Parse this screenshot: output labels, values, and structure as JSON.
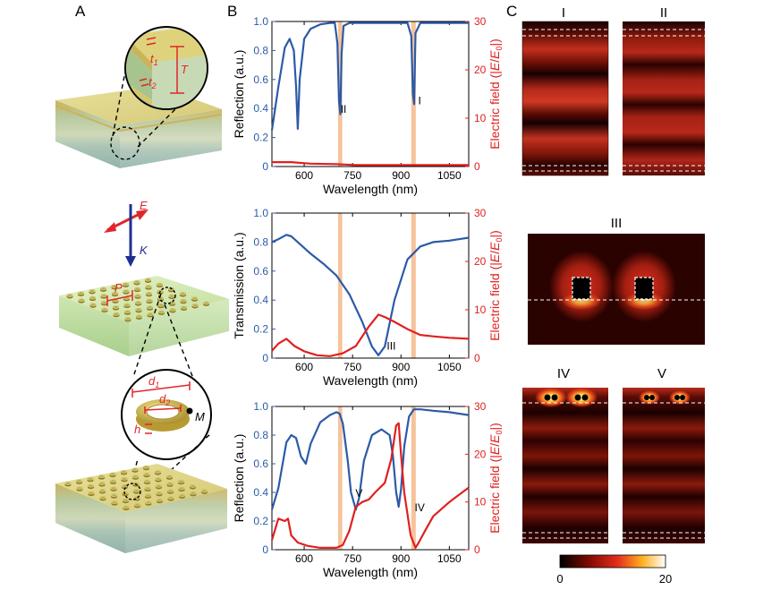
{
  "panel_labels": {
    "a": "A",
    "b": "B",
    "c": "C"
  },
  "schematic": {
    "zoom1": {
      "t1": "t",
      "t1_sub": "1",
      "t2": "t",
      "t2_sub": "2",
      "T": "T"
    },
    "field": {
      "E": "E",
      "K": "K"
    },
    "array": {
      "P": "P"
    },
    "zoom2": {
      "d1": "d",
      "d1_sub": "1",
      "d2": "d",
      "d2_sub": "2",
      "h": "h",
      "M": "M"
    }
  },
  "colors": {
    "blue": "#2c5aa8",
    "red": "#e02020",
    "band": "#f5b88a",
    "schematic_red": "#e0262b",
    "gold": "#c8b04a",
    "green": "#cfe6b2"
  },
  "chart_data": [
    {
      "type": "line",
      "panel": "B-top",
      "xlabel": "Wavelength (nm)",
      "ylabel_left": "Reflection (a.u.)",
      "ylabel_right": "Electric field (|E/E0|)",
      "ylabel_right_parts": [
        "Electric field (|",
        "E",
        "/",
        "E",
        "0",
        "|)"
      ],
      "xlim": [
        500,
        1110
      ],
      "ylim_left": [
        0,
        1.0
      ],
      "ylim_right": [
        0,
        30
      ],
      "x_ticks": [
        600,
        750,
        900,
        1050
      ],
      "x_tick_labels": [
        "600",
        "750",
        "900",
        "1050"
      ],
      "y_ticks_left": [
        0,
        0.2,
        0.4,
        0.6,
        0.8,
        1.0
      ],
      "y_tick_labels_left": [
        "0",
        "0.2",
        "0.4",
        "0.6",
        "0.8",
        "1.0"
      ],
      "y_ticks_right": [
        0,
        10,
        20,
        30
      ],
      "y_tick_labels_right": [
        "0",
        "10",
        "20",
        "30"
      ],
      "bands": [
        [
          705,
          718
        ],
        [
          932,
          946
        ]
      ],
      "annotations": [
        {
          "text": "II",
          "x": 722,
          "y": 0.37
        },
        {
          "text": "I",
          "x": 958,
          "y": 0.43
        }
      ],
      "series": [
        {
          "axis": "left",
          "color": "#2c5aa8",
          "x": [
            500,
            520,
            540,
            555,
            568,
            575,
            580,
            586,
            600,
            620,
            650,
            680,
            695,
            703,
            708,
            712,
            716,
            722,
            740,
            780,
            850,
            920,
            932,
            937,
            941,
            945,
            960,
            1000,
            1050,
            1110
          ],
          "y": [
            0.25,
            0.55,
            0.82,
            0.88,
            0.8,
            0.55,
            0.26,
            0.6,
            0.88,
            0.95,
            0.98,
            0.99,
            0.99,
            0.85,
            0.45,
            0.36,
            0.78,
            0.97,
            0.99,
            0.99,
            0.99,
            0.99,
            0.9,
            0.5,
            0.43,
            0.92,
            0.99,
            0.99,
            0.99,
            0.99
          ]
        },
        {
          "axis": "right",
          "color": "#e02020",
          "x": [
            500,
            560,
            620,
            700,
            760,
            840,
            920,
            1000,
            1110
          ],
          "y": [
            0.9,
            0.9,
            0.6,
            0.5,
            0.3,
            0.3,
            0.3,
            0.3,
            0.3
          ]
        }
      ]
    },
    {
      "type": "line",
      "panel": "B-middle",
      "xlabel": "Wavelength (nm)",
      "ylabel_left": "Transmission (a.u.)",
      "ylabel_right": "Electric field (|E/E0|)",
      "ylabel_right_parts": [
        "Electric field (|",
        "E",
        "/",
        "E",
        "0",
        "|)"
      ],
      "xlim": [
        500,
        1110
      ],
      "ylim_left": [
        0,
        1.0
      ],
      "ylim_right": [
        0,
        30
      ],
      "x_ticks": [
        600,
        750,
        900,
        1050
      ],
      "x_tick_labels": [
        "600",
        "750",
        "900",
        "1050"
      ],
      "y_ticks_left": [
        0,
        0.2,
        0.4,
        0.6,
        0.8,
        1.0
      ],
      "y_tick_labels_left": [
        "0",
        "0.2",
        "0.4",
        "0.6",
        "0.8",
        "1.0"
      ],
      "y_ticks_right": [
        0,
        10,
        20,
        30
      ],
      "y_tick_labels_right": [
        "0",
        "10",
        "20",
        "30"
      ],
      "bands": [
        [
          705,
          718
        ],
        [
          932,
          946
        ]
      ],
      "annotations": [
        {
          "text": "III",
          "x": 870,
          "y": 0.06
        }
      ],
      "series": [
        {
          "axis": "left",
          "color": "#2c5aa8",
          "x": [
            500,
            520,
            545,
            560,
            580,
            620,
            660,
            700,
            740,
            780,
            810,
            830,
            850,
            880,
            920,
            960,
            1000,
            1050,
            1110
          ],
          "y": [
            0.8,
            0.82,
            0.85,
            0.84,
            0.8,
            0.72,
            0.65,
            0.57,
            0.44,
            0.25,
            0.08,
            0.02,
            0.08,
            0.4,
            0.68,
            0.77,
            0.8,
            0.81,
            0.83
          ]
        },
        {
          "axis": "right",
          "color": "#e02020",
          "x": [
            500,
            520,
            545,
            570,
            600,
            640,
            680,
            720,
            760,
            800,
            830,
            850,
            880,
            920,
            960,
            1000,
            1050,
            1110
          ],
          "y": [
            1.5,
            3.0,
            4.0,
            2.5,
            1.4,
            0.6,
            0.4,
            1.0,
            2.5,
            6.5,
            9.0,
            8.5,
            7.5,
            6.0,
            4.8,
            4.5,
            4.2,
            4.0
          ]
        }
      ]
    },
    {
      "type": "line",
      "panel": "B-bottom",
      "xlabel": "Wavelength (nm)",
      "ylabel_left": "Reflection (a.u.)",
      "ylabel_right": "Electric field (|E/E0|)",
      "ylabel_right_parts": [
        "Electric field (|",
        "E",
        "/",
        "E",
        "0",
        "|)"
      ],
      "xlim": [
        500,
        1110
      ],
      "ylim_left": [
        0,
        1.0
      ],
      "ylim_right": [
        0,
        30
      ],
      "x_ticks": [
        600,
        750,
        900,
        1050
      ],
      "x_tick_labels": [
        "600",
        "750",
        "900",
        "1050"
      ],
      "y_ticks_left": [
        0,
        0.2,
        0.4,
        0.6,
        0.8,
        1.0
      ],
      "y_tick_labels_left": [
        "0",
        "0.2",
        "0.4",
        "0.6",
        "0.8",
        "1.0"
      ],
      "y_ticks_right": [
        0,
        10,
        20,
        30
      ],
      "y_tick_labels_right": [
        "0",
        "10",
        "20",
        "30"
      ],
      "bands": [
        [
          705,
          718
        ],
        [
          932,
          946
        ]
      ],
      "annotations": [
        {
          "text": "V",
          "x": 770,
          "y": 0.37
        },
        {
          "text": "IV",
          "x": 958,
          "y": 0.27
        }
      ],
      "series": [
        {
          "axis": "left",
          "color": "#2c5aa8",
          "x": [
            500,
            520,
            545,
            560,
            575,
            590,
            605,
            620,
            650,
            680,
            700,
            710,
            720,
            735,
            745,
            760,
            770,
            785,
            810,
            840,
            865,
            875,
            885,
            893,
            900,
            910,
            925,
            940,
            960,
            1000,
            1050,
            1110
          ],
          "y": [
            0.28,
            0.43,
            0.75,
            0.8,
            0.78,
            0.65,
            0.6,
            0.74,
            0.89,
            0.94,
            0.96,
            0.95,
            0.88,
            0.62,
            0.4,
            0.28,
            0.36,
            0.62,
            0.8,
            0.84,
            0.8,
            0.66,
            0.4,
            0.3,
            0.42,
            0.72,
            0.93,
            0.98,
            0.98,
            0.97,
            0.96,
            0.94
          ]
        },
        {
          "axis": "right",
          "color": "#e02020",
          "x": [
            500,
            520,
            540,
            550,
            560,
            580,
            610,
            650,
            700,
            720,
            740,
            760,
            780,
            800,
            820,
            850,
            870,
            885,
            893,
            900,
            910,
            930,
            945,
            955,
            975,
            1000,
            1050,
            1100,
            1110
          ],
          "y": [
            2.0,
            6.5,
            6.0,
            6.5,
            3.0,
            1.5,
            0.8,
            0.4,
            0.4,
            1.0,
            4.0,
            9.0,
            10.0,
            10.5,
            12.0,
            14.0,
            19.0,
            26.0,
            26.5,
            20.0,
            12.0,
            3.0,
            0.4,
            1.5,
            4.0,
            7.0,
            10.0,
            12.5,
            13.0
          ]
        }
      ]
    }
  ],
  "field_maps": {
    "labels": {
      "I": "I",
      "II": "II",
      "III": "III",
      "IV": "IV",
      "V": "V"
    },
    "colorbar": {
      "min_label": "0",
      "max_label": "20",
      "min": 0,
      "max": 20
    }
  }
}
